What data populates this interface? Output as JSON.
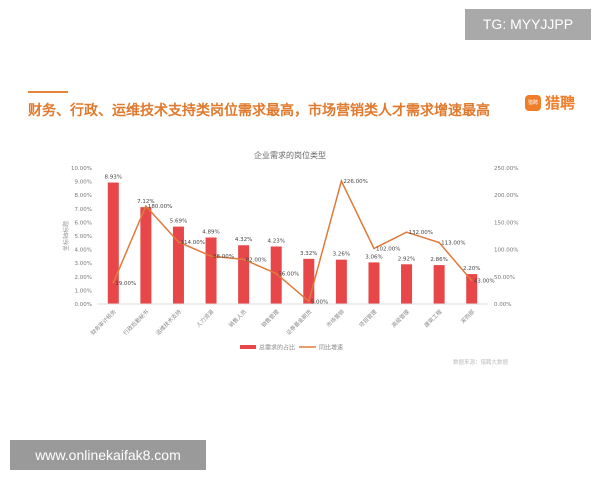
{
  "watermark_top": "TG: MYYJJPP",
  "watermark_bottom": "www.onlinekaifak8.com",
  "headline": "财务、行政、运维技术支持类岗位需求最高，市场营销类人才需求增速最高",
  "logo": {
    "text": "猎聘",
    "icon_text": "猎聘"
  },
  "source": "数据来源：猎聘大数据",
  "colors": {
    "bar": "#e8474a",
    "line": "#e07a3c",
    "accent": "#e8843a"
  },
  "chart_data": {
    "type": "bar+line",
    "title": "企业需求的岗位类型",
    "ylabel": "坐标轴标题",
    "categories": [
      "财务审计税务",
      "行政后勤秘书",
      "运维技术支持",
      "人力资源",
      "销售人员",
      "销售管理",
      "证券基金期货",
      "市场营销",
      "项目管理",
      "高级管理",
      "建筑工程",
      "采购部"
    ],
    "series": [
      {
        "name": "总需求的占比",
        "type": "bar",
        "axis": "left",
        "values": [
          8.93,
          7.12,
          5.69,
          4.89,
          4.32,
          4.23,
          3.32,
          3.26,
          3.06,
          2.92,
          2.86,
          2.2
        ]
      },
      {
        "name": "同比增速",
        "type": "line",
        "axis": "right",
        "values": [
          39,
          180,
          114,
          88,
          82,
          56,
          5,
          226,
          102,
          132,
          113,
          43
        ]
      }
    ],
    "left_axis": {
      "min": 0,
      "max": 10,
      "step": 1,
      "ticks": [
        "0.00%",
        "1.00%",
        "2.00%",
        "3.00%",
        "4.00%",
        "5.00%",
        "6.00%",
        "7.00%",
        "8.00%",
        "9.00%",
        "10.00%"
      ]
    },
    "right_axis": {
      "min": 0,
      "max": 250,
      "step": 50,
      "ticks": [
        "0.00%",
        "50.00%",
        "100.00%",
        "150.00%",
        "200.00%",
        "250.00%"
      ]
    },
    "legend": "bottom",
    "grid": false
  }
}
